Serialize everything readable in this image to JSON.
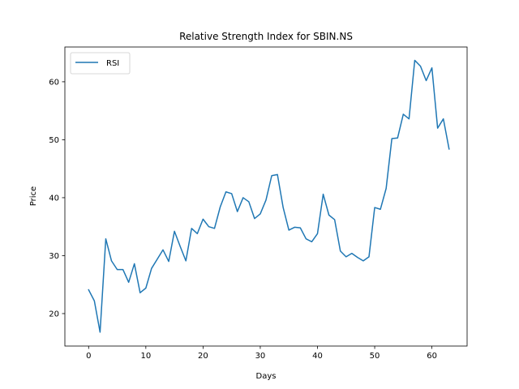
{
  "chart_data": {
    "type": "line",
    "title": "Relative Strength Index for SBIN.NS",
    "xlabel": "Days",
    "ylabel": "Price",
    "xlim": [
      -4.15,
      66.15
    ],
    "ylim": [
      14.4,
      66.0
    ],
    "xticks": [
      0,
      10,
      20,
      30,
      40,
      50,
      60
    ],
    "yticks": [
      20,
      30,
      40,
      50,
      60
    ],
    "grid": false,
    "legend_position": "top-left",
    "series": [
      {
        "name": "RSI",
        "color": "#1f77b4",
        "x": [
          0,
          1,
          2,
          3,
          4,
          5,
          6,
          7,
          8,
          9,
          10,
          11,
          12,
          13,
          14,
          15,
          16,
          17,
          18,
          19,
          20,
          21,
          22,
          23,
          24,
          25,
          26,
          27,
          28,
          29,
          30,
          31,
          32,
          33,
          34,
          35,
          36,
          37,
          38,
          39,
          40,
          41,
          42,
          43,
          44,
          45,
          46,
          47,
          48,
          49,
          50,
          51,
          52,
          53,
          54,
          55,
          56,
          57,
          58,
          59,
          60,
          61,
          62,
          63
        ],
        "y": [
          24.1,
          22.2,
          16.8,
          32.9,
          29.1,
          27.6,
          27.6,
          25.4,
          28.6,
          23.6,
          24.4,
          27.8,
          29.4,
          31.0,
          29.0,
          34.2,
          31.6,
          29.1,
          34.7,
          33.8,
          36.3,
          35.0,
          34.7,
          38.4,
          41.0,
          40.7,
          37.6,
          40.0,
          39.3,
          36.4,
          37.2,
          39.6,
          43.8,
          44.0,
          38.3,
          34.4,
          34.9,
          34.8,
          32.9,
          32.4,
          33.8,
          40.6,
          37.0,
          36.2,
          30.8,
          29.8,
          30.4,
          29.7,
          29.1,
          29.8,
          38.3,
          38.0,
          41.6,
          50.2,
          50.3,
          54.4,
          53.6,
          63.7,
          62.7,
          60.2,
          62.4,
          52.0,
          53.6,
          48.4
        ]
      }
    ]
  }
}
